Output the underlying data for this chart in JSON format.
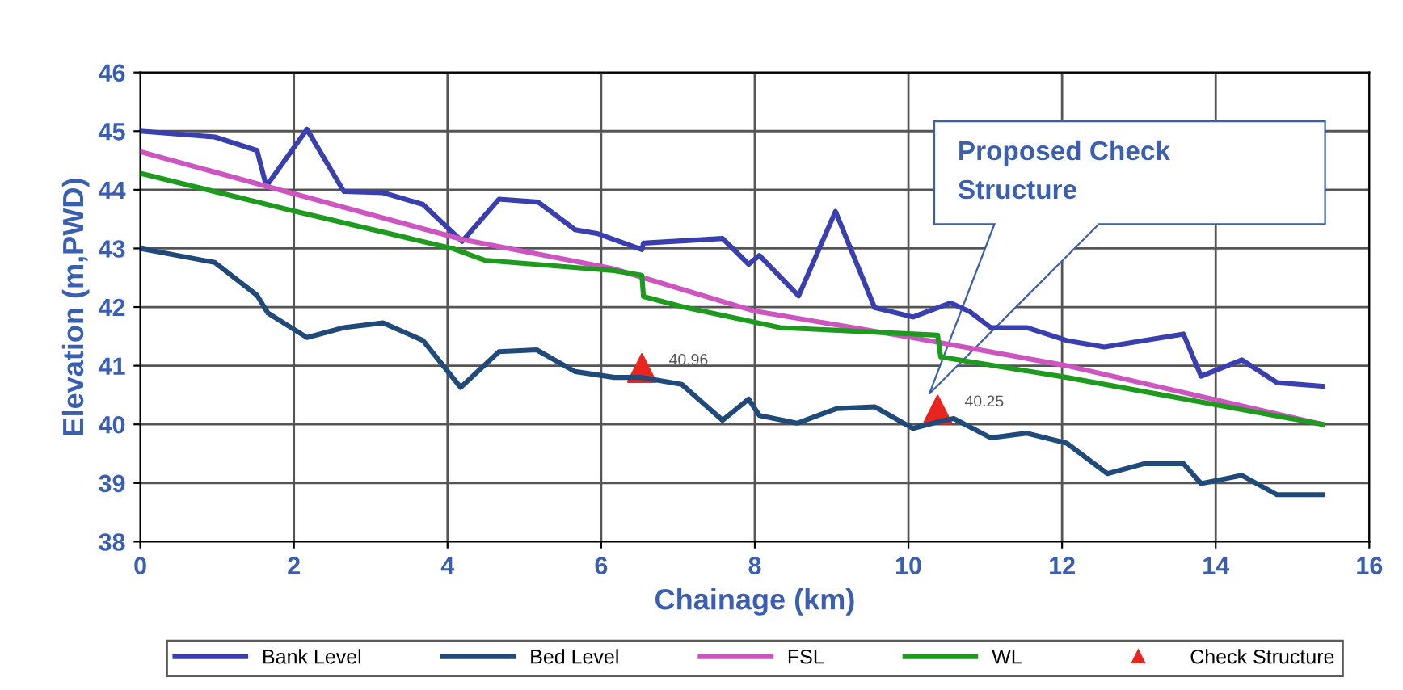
{
  "chart_data": {
    "type": "line",
    "xlabel": "Chainage (km)",
    "ylabel": "Elevation (m,PWD)",
    "xlim": [
      0,
      16
    ],
    "ylim": [
      38,
      46
    ],
    "xticks": [
      0,
      2,
      4,
      6,
      8,
      10,
      12,
      14,
      16
    ],
    "yticks": [
      38,
      39,
      40,
      41,
      42,
      43,
      44,
      45,
      46
    ],
    "grid": true,
    "legend": "bottom",
    "line_style": "solid",
    "marker": "none",
    "series": [
      {
        "name": "Bank Level",
        "color": "#3a3fb0",
        "x": [
          0,
          0.97,
          1.52,
          1.64,
          2.17,
          2.65,
          3.16,
          3.68,
          4.19,
          4.67,
          5.18,
          5.66,
          5.96,
          6.53,
          6.55,
          7.58,
          7.92,
          8.06,
          8.57,
          9.05,
          9.56,
          10.06,
          10.55,
          10.8,
          11.07,
          11.54,
          12.06,
          12.55,
          13.58,
          13.81,
          14.34,
          14.8,
          15.39
        ],
        "values": [
          45.0,
          44.9,
          44.67,
          44.06,
          45.03,
          43.97,
          43.95,
          43.75,
          43.12,
          43.84,
          43.79,
          43.32,
          43.25,
          42.98,
          43.09,
          43.17,
          42.73,
          42.88,
          42.19,
          43.63,
          41.99,
          41.83,
          42.07,
          41.92,
          41.65,
          41.65,
          41.43,
          41.32,
          41.54,
          40.82,
          41.1,
          40.71,
          40.65
        ]
      },
      {
        "name": "Bed Level",
        "color": "#1f4a7a",
        "x": [
          0,
          0.97,
          1.52,
          1.66,
          2.17,
          2.65,
          3.16,
          3.68,
          4.17,
          4.67,
          5.16,
          5.66,
          6.17,
          6.53,
          7.05,
          7.58,
          7.92,
          8.06,
          8.55,
          9.07,
          9.56,
          10.06,
          10.38,
          10.59,
          11.07,
          11.54,
          12.06,
          12.59,
          13.07,
          13.58,
          13.81,
          14.34,
          14.8,
          15.39
        ],
        "values": [
          43.0,
          42.76,
          42.2,
          41.9,
          41.48,
          41.65,
          41.73,
          41.43,
          40.63,
          41.24,
          41.27,
          40.9,
          40.8,
          40.8,
          40.68,
          40.07,
          40.43,
          40.15,
          40.02,
          40.27,
          40.3,
          39.93,
          40.04,
          40.1,
          39.77,
          39.85,
          39.68,
          39.16,
          39.33,
          39.33,
          38.99,
          39.13,
          38.8,
          38.8
        ]
      },
      {
        "name": "FSL",
        "color": "#cc55c0",
        "x": [
          0,
          1.64,
          4.2,
          6.17,
          8.0,
          10.0,
          12.06,
          15.39
        ],
        "values": [
          44.65,
          44.06,
          43.15,
          42.65,
          41.93,
          41.49,
          41.0,
          40.0
        ]
      },
      {
        "name": "WL",
        "color": "#1e9a1e",
        "x": [
          0,
          1.96,
          4.06,
          4.48,
          6.17,
          6.53,
          6.55,
          7.07,
          8.33,
          10.38,
          10.42,
          12.06,
          15.39
        ],
        "values": [
          44.28,
          43.65,
          43.0,
          42.8,
          42.62,
          42.54,
          42.18,
          42.0,
          41.65,
          41.52,
          41.15,
          40.8,
          40.0
        ]
      },
      {
        "name": "Check Structure",
        "type": "scatter",
        "marker": "triangle",
        "color": "#e8251f",
        "x": [
          6.53,
          10.38
        ],
        "values": [
          40.96,
          40.25
        ],
        "value_labels": [
          "40.96",
          "40.25"
        ]
      }
    ],
    "annotations": [
      "Proposed Check\nStructure"
    ]
  }
}
